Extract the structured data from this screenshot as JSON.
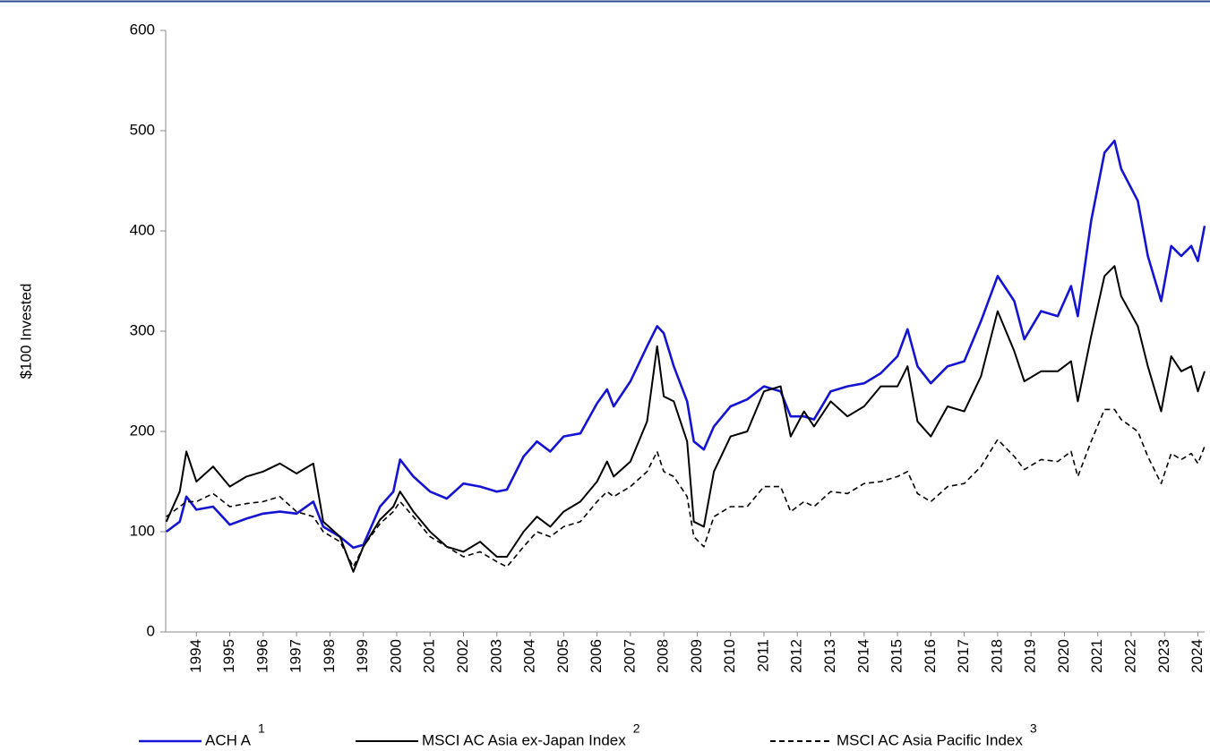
{
  "chart_data": {
    "type": "line",
    "y_label": "$100 Invested",
    "x": [
      1993.1,
      1993.5,
      1993.7,
      1994.0,
      1994.5,
      1995.0,
      1995.5,
      1996.0,
      1996.5,
      1997.0,
      1997.5,
      1997.8,
      1998.3,
      1998.7,
      1999.0,
      1999.5,
      1999.9,
      2000.1,
      2000.5,
      2001.0,
      2001.5,
      2002.0,
      2002.5,
      2003.0,
      2003.3,
      2003.8,
      2004.2,
      2004.6,
      2005.0,
      2005.5,
      2006.0,
      2006.3,
      2006.5,
      2007.0,
      2007.5,
      2007.8,
      2008.0,
      2008.3,
      2008.7,
      2008.9,
      2009.2,
      2009.5,
      2010.0,
      2010.5,
      2011.0,
      2011.5,
      2011.8,
      2012.2,
      2012.5,
      2013.0,
      2013.5,
      2014.0,
      2014.5,
      2015.0,
      2015.3,
      2015.6,
      2016.0,
      2016.5,
      2017.0,
      2017.5,
      2018.0,
      2018.5,
      2018.8,
      2019.3,
      2019.8,
      2020.2,
      2020.4,
      2020.8,
      2021.2,
      2021.5,
      2021.7,
      2022.2,
      2022.5,
      2022.9,
      2023.2,
      2023.5,
      2023.8,
      2024.0,
      2024.2
    ],
    "series": [
      {
        "name": "ACH A",
        "footnote": "1",
        "color": "#1414d2",
        "dash": false,
        "values": [
          100,
          110,
          135,
          122,
          125,
          107,
          113,
          118,
          120,
          118,
          130,
          105,
          95,
          84,
          87,
          125,
          140,
          172,
          155,
          140,
          133,
          148,
          145,
          140,
          142,
          175,
          190,
          180,
          195,
          198,
          228,
          242,
          225,
          250,
          285,
          305,
          298,
          265,
          230,
          190,
          182,
          205,
          225,
          232,
          245,
          240,
          215,
          215,
          212,
          240,
          245,
          248,
          258,
          275,
          302,
          265,
          248,
          265,
          270,
          310,
          355,
          330,
          292,
          320,
          315,
          345,
          315,
          410,
          478,
          490,
          462,
          430,
          375,
          330,
          385,
          375,
          385,
          370,
          405
        ]
      },
      {
        "name": "MSCI AC Asia ex-Japan Index",
        "footnote": "2",
        "color": "#000000",
        "dash": false,
        "values": [
          110,
          140,
          180,
          150,
          165,
          145,
          155,
          160,
          168,
          158,
          168,
          110,
          95,
          60,
          85,
          112,
          125,
          140,
          120,
          100,
          85,
          80,
          90,
          75,
          75,
          100,
          115,
          105,
          120,
          130,
          150,
          170,
          155,
          170,
          210,
          285,
          235,
          230,
          190,
          110,
          105,
          160,
          195,
          200,
          240,
          245,
          195,
          220,
          205,
          230,
          215,
          225,
          245,
          245,
          265,
          210,
          195,
          225,
          220,
          255,
          320,
          280,
          250,
          260,
          260,
          270,
          230,
          295,
          355,
          365,
          335,
          305,
          265,
          220,
          275,
          260,
          265,
          240,
          260
        ]
      },
      {
        "name": "MSCI AC Asia Pacific Index",
        "footnote": "3",
        "color": "#000000",
        "dash": true,
        "values": [
          115,
          125,
          130,
          130,
          138,
          125,
          128,
          130,
          135,
          120,
          115,
          100,
          90,
          65,
          85,
          108,
          120,
          130,
          115,
          95,
          85,
          75,
          80,
          70,
          65,
          85,
          100,
          95,
          105,
          110,
          130,
          140,
          135,
          145,
          160,
          180,
          160,
          155,
          135,
          95,
          85,
          115,
          125,
          125,
          145,
          145,
          120,
          130,
          125,
          140,
          138,
          148,
          150,
          155,
          160,
          138,
          130,
          145,
          148,
          165,
          192,
          175,
          162,
          172,
          170,
          180,
          155,
          190,
          222,
          222,
          212,
          200,
          175,
          148,
          178,
          172,
          178,
          168,
          185
        ]
      }
    ],
    "xlim": [
      1993.08,
      2024.2
    ],
    "xticks": [
      1994,
      1995,
      1996,
      1997,
      1998,
      1999,
      2000,
      2001,
      2002,
      2003,
      2004,
      2005,
      2006,
      2007,
      2008,
      2009,
      2010,
      2011,
      2012,
      2013,
      2014,
      2015,
      2016,
      2017,
      2018,
      2019,
      2020,
      2021,
      2022,
      2023,
      2024
    ],
    "ylim": [
      0,
      600
    ],
    "yticks": [
      0,
      100,
      200,
      300,
      400,
      500,
      600
    ]
  }
}
